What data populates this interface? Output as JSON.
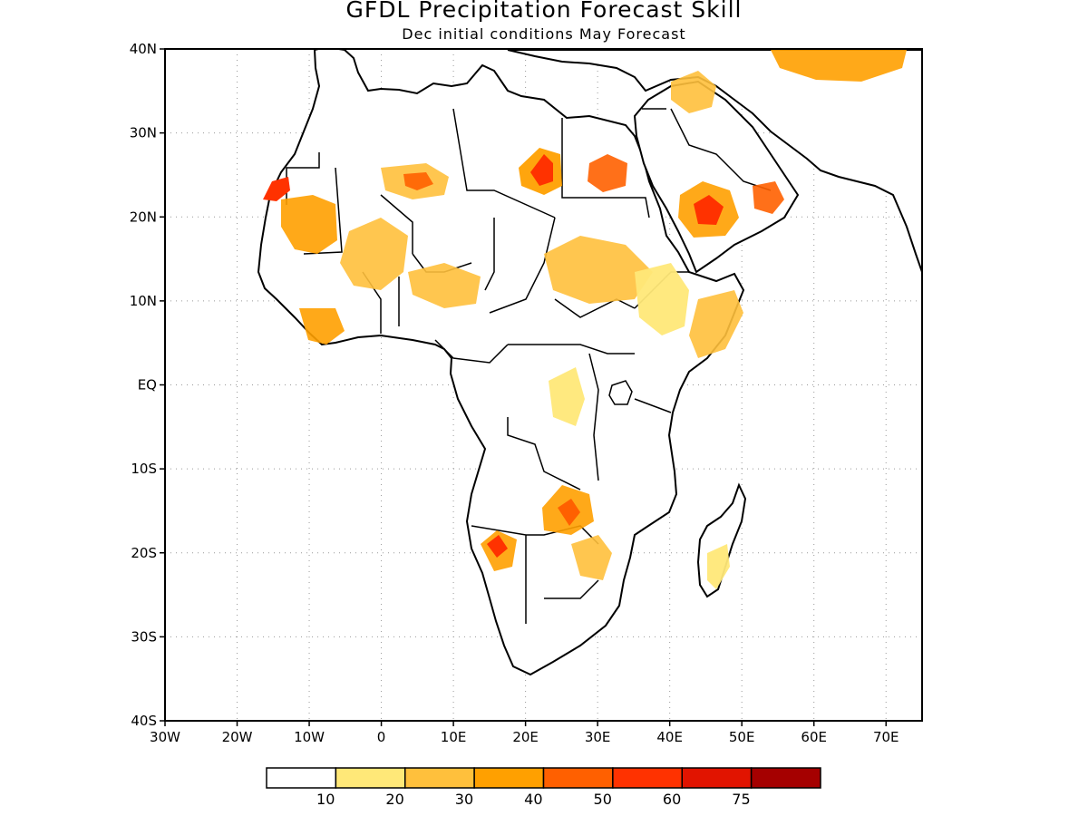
{
  "title": "GFDL Precipitation Forecast Skill",
  "subtitle": "Dec initial conditions  May Forecast",
  "map": {
    "lon_range": [
      -30,
      75
    ],
    "lat_range": [
      -40,
      40
    ],
    "lat_labels": [
      "40N",
      "30N",
      "20N",
      "10N",
      "EQ",
      "10S",
      "20S",
      "30S",
      "40S"
    ],
    "lon_labels": [
      "30W",
      "20W",
      "10W",
      "0",
      "10E",
      "20E",
      "30E",
      "40E",
      "50E",
      "60E",
      "70E"
    ],
    "grid": "dotted",
    "land_outline_color": "#000000"
  },
  "colorbar": {
    "colors": [
      "#ffffff",
      "#ffe878",
      "#ffc03c",
      "#ffa000",
      "#ff6000",
      "#ff3200",
      "#e11400",
      "#a50000"
    ],
    "labels": [
      "10",
      "20",
      "30",
      "40",
      "50",
      "60",
      "75"
    ]
  }
}
